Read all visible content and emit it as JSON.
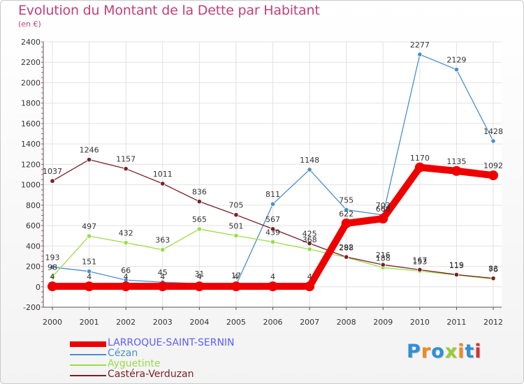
{
  "title": "Evolution du Montant de la Dette par Habitant",
  "subtitle": "(en €)",
  "logo": {
    "text": "Proxiti",
    "colors": [
      "#2e8fd8",
      "#f08a1c",
      "#2e8fd8",
      "#9acd32",
      "#f08a1c",
      "#2e8fd8",
      "#d63030"
    ]
  },
  "chart_data": {
    "type": "line",
    "x": [
      "2000",
      "2001",
      "2002",
      "2003",
      "2004",
      "2005",
      "2006",
      "2007",
      "2008",
      "2009",
      "2010",
      "2011",
      "2012"
    ],
    "ylim": [
      -200,
      2400
    ],
    "yticks": [
      "-200",
      "0",
      "200",
      "400",
      "600",
      "800",
      "1000",
      "1200",
      "1400",
      "1600",
      "1800",
      "2000",
      "2200",
      "2400"
    ],
    "grid": true,
    "legend_position": "bottom-left",
    "series": [
      {
        "name": "LARROQUE-SAINT-SERNIN",
        "color": "#ee0000",
        "label_color": "#5b5bff",
        "thick": true,
        "values": [
          4,
          4,
          4,
          4,
          4,
          4,
          4,
          4,
          622,
          668,
          1170,
          1135,
          1092
        ],
        "labels": [
          "4",
          "4",
          "4",
          "4",
          "4",
          "4",
          "4",
          "4",
          "622",
          "668",
          "1170",
          "1135",
          "1092"
        ]
      },
      {
        "name": "Cézan",
        "color": "#4b8fca",
        "label_color": "#4b8fca",
        "thick": false,
        "values": [
          193,
          151,
          66,
          45,
          31,
          17,
          811,
          1148,
          755,
          703,
          2277,
          2129,
          1428
        ],
        "labels": [
          "193",
          "151",
          "66",
          "45",
          "31",
          "17",
          "811",
          "1148",
          "755",
          "703",
          "2277",
          "2129",
          "1428"
        ]
      },
      {
        "name": "Ayguetinte",
        "color": "#99dd44",
        "label_color": "#8fce3c",
        "thick": false,
        "values": [
          98,
          497,
          432,
          363,
          565,
          501,
          439,
          368,
          288,
          188,
          153,
          115,
          76
        ],
        "labels": [
          "98",
          "497",
          "432",
          "363",
          "565",
          "501",
          "439",
          "368",
          "288",
          "188",
          "153",
          "115",
          "76"
        ]
      },
      {
        "name": "Castéra-Verduzan",
        "color": "#7a1f25",
        "label_color": "#7a1f25",
        "thick": false,
        "values": [
          1037,
          1246,
          1157,
          1011,
          836,
          705,
          567,
          425,
          292,
          216,
          167,
          119,
          83
        ],
        "labels": [
          "1037",
          "1246",
          "1157",
          "1011",
          "836",
          "705",
          "567",
          "425",
          "292",
          "216",
          "167",
          "119",
          "83"
        ]
      }
    ]
  }
}
